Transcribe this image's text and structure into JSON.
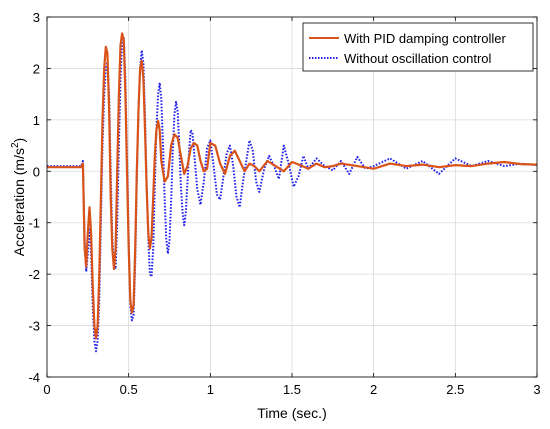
{
  "chart_data": {
    "type": "line",
    "xlabel": "Time (sec.)",
    "ylabel": "Acceleration (m/s",
    "ylabel_sup": "2",
    "ylabel_close": ")",
    "xlim": [
      0,
      3
    ],
    "ylim": [
      -4,
      3
    ],
    "xticks": [
      "0",
      "0.5",
      "1",
      "1.5",
      "2",
      "2.5",
      "3"
    ],
    "yticks": [
      "-4",
      "-3",
      "-2",
      "-1",
      "0",
      "1",
      "2",
      "3"
    ],
    "grid": true,
    "legend_position": "top-right",
    "series": [
      {
        "name": "With PID damping controller",
        "color": "#d95319",
        "style": "solid",
        "x": [
          0,
          0.21,
          0.22,
          0.23,
          0.24,
          0.25,
          0.26,
          0.27,
          0.28,
          0.29,
          0.3,
          0.31,
          0.32,
          0.33,
          0.34,
          0.35,
          0.36,
          0.37,
          0.38,
          0.39,
          0.4,
          0.41,
          0.42,
          0.43,
          0.44,
          0.45,
          0.46,
          0.47,
          0.48,
          0.49,
          0.5,
          0.51,
          0.52,
          0.53,
          0.54,
          0.55,
          0.56,
          0.57,
          0.58,
          0.59,
          0.6,
          0.61,
          0.62,
          0.63,
          0.64,
          0.65,
          0.66,
          0.67,
          0.68,
          0.69,
          0.7,
          0.72,
          0.74,
          0.76,
          0.78,
          0.8,
          0.82,
          0.84,
          0.86,
          0.88,
          0.9,
          0.92,
          0.94,
          0.96,
          0.98,
          1.0,
          1.03,
          1.06,
          1.09,
          1.12,
          1.15,
          1.18,
          1.21,
          1.24,
          1.27,
          1.3,
          1.35,
          1.4,
          1.45,
          1.5,
          1.55,
          1.6,
          1.65,
          1.7,
          1.75,
          1.8,
          1.9,
          2.0,
          2.1,
          2.2,
          2.3,
          2.4,
          2.5,
          2.6,
          2.7,
          2.8,
          2.9,
          3.0
        ],
        "y": [
          0.08,
          0.08,
          0.15,
          -1.5,
          -1.85,
          -1.2,
          -0.7,
          -1.2,
          -2.2,
          -3.0,
          -3.25,
          -3.0,
          -2.0,
          -0.5,
          1.0,
          2.0,
          2.42,
          2.3,
          1.2,
          -0.5,
          -1.5,
          -1.9,
          -1.5,
          0.0,
          1.5,
          2.45,
          2.68,
          2.55,
          1.5,
          0.0,
          -1.5,
          -2.5,
          -2.75,
          -2.6,
          -1.5,
          0.0,
          1.2,
          2.0,
          2.15,
          1.8,
          0.8,
          -0.3,
          -1.2,
          -1.5,
          -1.3,
          -0.5,
          0.3,
          0.8,
          0.98,
          0.8,
          0.2,
          -0.2,
          -0.1,
          0.5,
          0.72,
          0.65,
          0.3,
          -0.05,
          0.1,
          0.45,
          0.55,
          0.5,
          0.2,
          0.0,
          0.05,
          0.55,
          0.5,
          0.15,
          -0.05,
          0.3,
          0.4,
          0.2,
          0.0,
          0.15,
          0.1,
          0.0,
          0.2,
          0.1,
          0.0,
          0.18,
          0.12,
          0.05,
          0.15,
          0.08,
          0.1,
          0.15,
          0.1,
          0.05,
          0.15,
          0.1,
          0.13,
          0.08,
          0.12,
          0.1,
          0.15,
          0.18,
          0.14,
          0.13
        ]
      },
      {
        "name": "Without oscillation control",
        "color": "#2222ee",
        "style": "dotted",
        "x": [
          0,
          0.21,
          0.22,
          0.23,
          0.24,
          0.25,
          0.26,
          0.27,
          0.28,
          0.29,
          0.3,
          0.31,
          0.32,
          0.33,
          0.34,
          0.35,
          0.36,
          0.37,
          0.38,
          0.39,
          0.4,
          0.41,
          0.42,
          0.43,
          0.44,
          0.45,
          0.46,
          0.47,
          0.48,
          0.49,
          0.5,
          0.51,
          0.52,
          0.53,
          0.54,
          0.55,
          0.56,
          0.57,
          0.58,
          0.59,
          0.6,
          0.61,
          0.62,
          0.63,
          0.64,
          0.65,
          0.66,
          0.67,
          0.68,
          0.69,
          0.7,
          0.71,
          0.72,
          0.73,
          0.74,
          0.75,
          0.76,
          0.77,
          0.78,
          0.79,
          0.8,
          0.81,
          0.82,
          0.83,
          0.84,
          0.85,
          0.86,
          0.87,
          0.88,
          0.89,
          0.9,
          0.92,
          0.94,
          0.96,
          0.98,
          1.0,
          1.02,
          1.04,
          1.06,
          1.08,
          1.1,
          1.12,
          1.14,
          1.16,
          1.18,
          1.2,
          1.22,
          1.24,
          1.26,
          1.28,
          1.3,
          1.33,
          1.36,
          1.39,
          1.42,
          1.45,
          1.48,
          1.51,
          1.54,
          1.57,
          1.6,
          1.65,
          1.7,
          1.75,
          1.8,
          1.85,
          1.9,
          1.95,
          2.0,
          2.1,
          2.2,
          2.3,
          2.4,
          2.5,
          2.6,
          2.7,
          2.8,
          2.9,
          3.0
        ],
        "y": [
          0.1,
          0.1,
          0.2,
          -1.3,
          -1.95,
          -1.6,
          -1.1,
          -1.6,
          -2.6,
          -3.3,
          -3.5,
          -3.3,
          -2.5,
          -1.0,
          0.5,
          1.5,
          2.0,
          2.12,
          1.5,
          0.0,
          -1.3,
          -1.85,
          -1.9,
          -1.0,
          0.5,
          1.8,
          2.5,
          2.6,
          1.8,
          0.3,
          -1.3,
          -2.6,
          -2.9,
          -2.8,
          -1.8,
          -0.2,
          1.2,
          2.0,
          2.35,
          2.1,
          1.1,
          -0.2,
          -1.3,
          -2.0,
          -2.05,
          -1.5,
          -0.3,
          0.8,
          1.5,
          1.72,
          1.4,
          0.5,
          -0.5,
          -1.3,
          -1.6,
          -1.35,
          -0.6,
          0.4,
          1.1,
          1.35,
          1.15,
          0.5,
          -0.3,
          -0.8,
          -1.05,
          -0.8,
          -0.2,
          0.4,
          0.8,
          0.75,
          0.4,
          -0.35,
          -0.65,
          -0.2,
          0.45,
          0.6,
          0.1,
          -0.45,
          -0.55,
          -0.1,
          0.35,
          0.5,
          0.1,
          -0.5,
          -0.7,
          -0.2,
          0.2,
          0.6,
          0.4,
          -0.2,
          -0.4,
          0.05,
          0.3,
          0.1,
          -0.15,
          0.5,
          0.15,
          -0.3,
          -0.1,
          0.3,
          0.05,
          0.25,
          0.1,
          0.02,
          0.2,
          -0.05,
          0.28,
          0.05,
          0.1,
          0.25,
          0.05,
          0.2,
          -0.05,
          0.25,
          0.1,
          0.2,
          0.1,
          0.15,
          0.12
        ]
      }
    ]
  }
}
